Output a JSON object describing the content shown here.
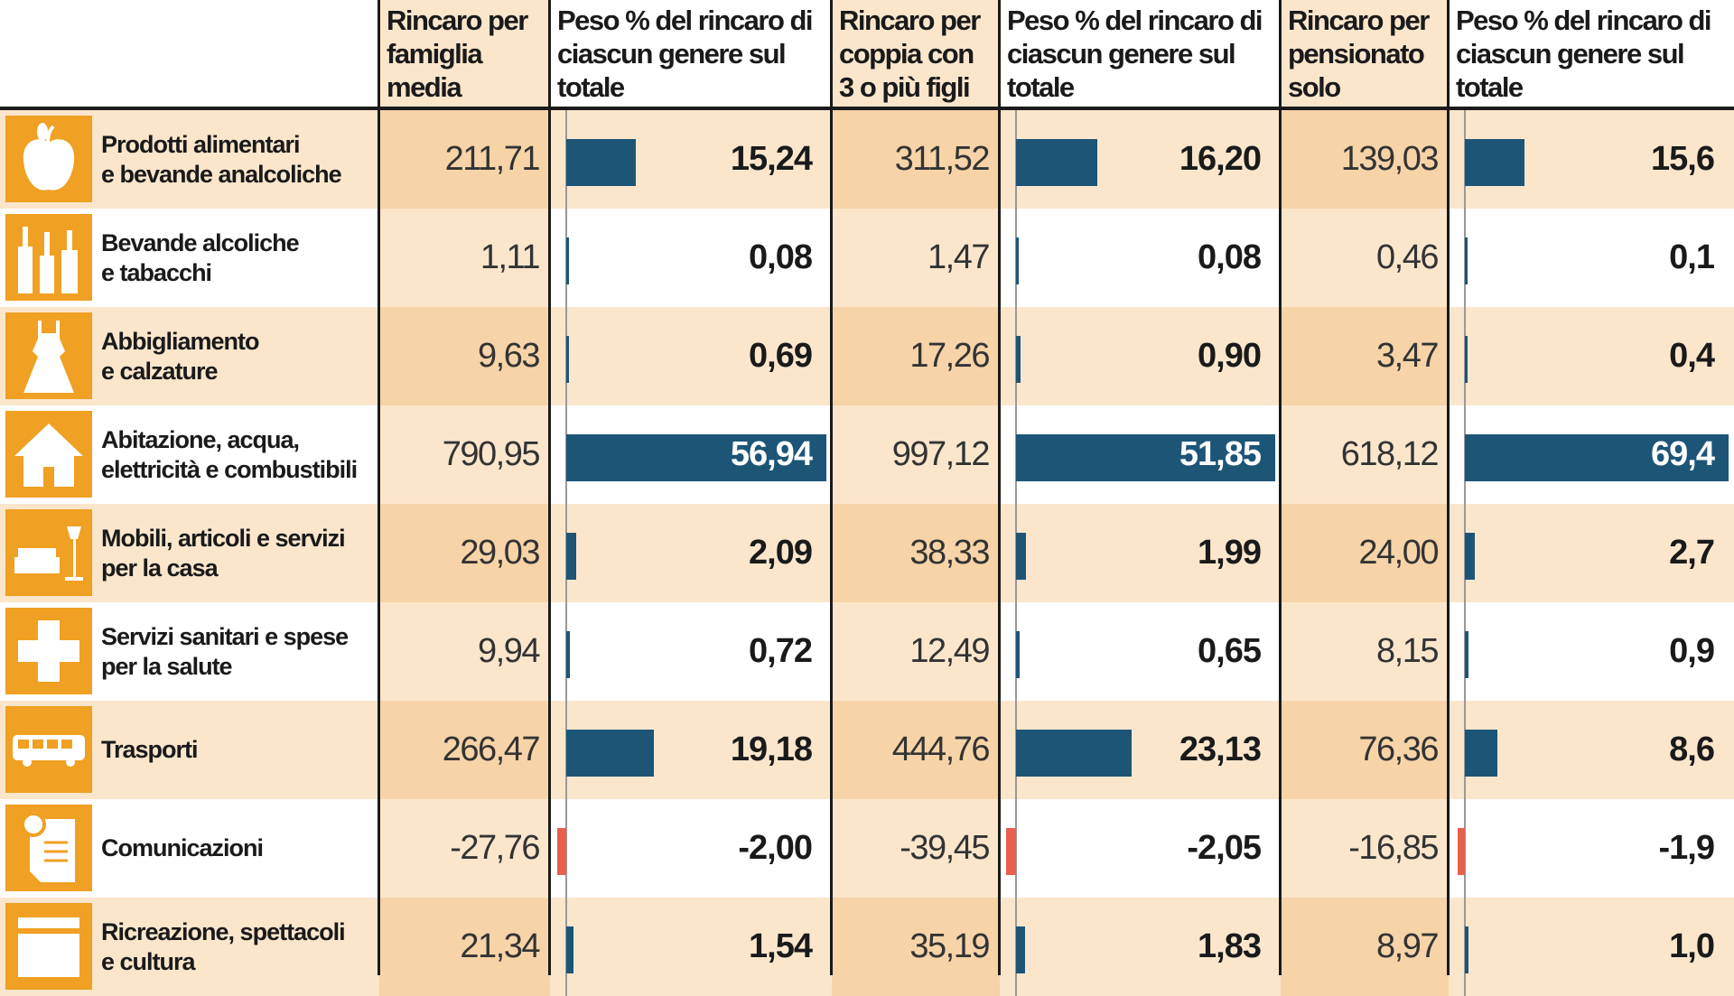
{
  "colors": {
    "accent_icon": "#f0a022",
    "bar_positive": "#1d5577",
    "bar_negative": "#e8604c",
    "row_odd": "#fbe6cc",
    "num_odd": "#f7d3a8",
    "row_even": "#ffffff",
    "num_even": "#fbe6cc"
  },
  "chart_data": {
    "type": "table",
    "columns": [
      "Rincaro per famiglia media",
      "Peso % del rincaro di ciascun genere sul totale",
      "Rincaro per coppia con 3 o più figli",
      "Peso % del rincaro di ciascun genere sul totale",
      "Rincaro per pensionato solo",
      "Peso % del rincaro di ciascun genere sul totale"
    ],
    "rows": [
      {
        "icon": "apple-icon",
        "label": "Prodotti alimentari\ne bevande analcoliche",
        "values": [
          "211,71",
          "15,24",
          "311,52",
          "16,20",
          "139,03",
          "15,6"
        ],
        "pct": [
          15.24,
          16.2,
          15.6
        ]
      },
      {
        "icon": "bottles-icon",
        "label": "Bevande alcoliche\ne tabacchi",
        "values": [
          "1,11",
          "0,08",
          "1,47",
          "0,08",
          "0,46",
          "0,1"
        ],
        "pct": [
          0.08,
          0.08,
          0.1
        ]
      },
      {
        "icon": "dress-icon",
        "label": "Abbigliamento\ne calzature",
        "values": [
          "9,63",
          "0,69",
          "17,26",
          "0,90",
          "3,47",
          "0,4"
        ],
        "pct": [
          0.69,
          0.9,
          0.4
        ]
      },
      {
        "icon": "house-icon",
        "label": "Abitazione, acqua,\nelettricità e combustibili",
        "values": [
          "790,95",
          "56,94",
          "997,12",
          "51,85",
          "618,12",
          "69,4"
        ],
        "pct": [
          56.94,
          51.85,
          69.4
        ]
      },
      {
        "icon": "sofa-lamp-icon",
        "label": "Mobili, articoli e servizi\nper la casa",
        "values": [
          "29,03",
          "2,09",
          "38,33",
          "1,99",
          "24,00",
          "2,7"
        ],
        "pct": [
          2.09,
          1.99,
          2.7
        ]
      },
      {
        "icon": "medical-cross-icon",
        "label": "Servizi sanitari e spese\nper la salute",
        "values": [
          "9,94",
          "0,72",
          "12,49",
          "0,65",
          "8,15",
          "0,9"
        ],
        "pct": [
          0.72,
          0.65,
          0.9
        ]
      },
      {
        "icon": "bus-icon",
        "label": "Trasporti",
        "values": [
          "266,47",
          "19,18",
          "444,76",
          "23,13",
          "76,36",
          "8,6"
        ],
        "pct": [
          19.18,
          23.13,
          8.6
        ]
      },
      {
        "icon": "letter-icon",
        "label": "Comunicazioni",
        "values": [
          "-27,76",
          "-2,00",
          "-39,45",
          "-2,05",
          "-16,85",
          "-1,9"
        ],
        "pct": [
          -2.0,
          -2.05,
          -1.9
        ]
      },
      {
        "icon": "clapperboard-icon",
        "label": "Ricreazione, spettacoli\ne cultura",
        "values": [
          "21,34",
          "1,54",
          "35,19",
          "1,83",
          "8,97",
          "1,0"
        ],
        "pct": [
          1.54,
          1.83,
          1.0
        ]
      }
    ]
  }
}
